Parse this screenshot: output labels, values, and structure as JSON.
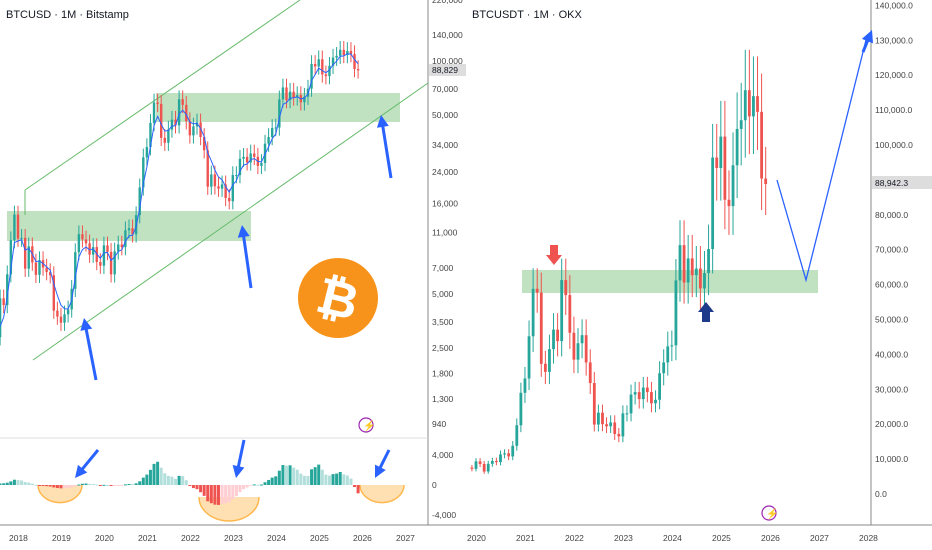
{
  "left": {
    "title": "BTCUSD · 1M · Bitstamp",
    "last_price": "88,829",
    "price_ticks": [
      "220,000",
      "140,000",
      "100,000",
      "70,000",
      "50,000",
      "34,000",
      "24,000",
      "16,000",
      "11,000",
      "7,000",
      "5,000",
      "3,500",
      "2,500",
      "1,800",
      "1,300",
      "940"
    ],
    "price_tick_values": [
      220000,
      140000,
      100000,
      70000,
      50000,
      34000,
      24000,
      16000,
      11000,
      7000,
      5000,
      3500,
      2500,
      1800,
      1300,
      940
    ],
    "osc_ticks": [
      "4,000",
      "0",
      "-4,000"
    ],
    "osc_tick_values": [
      4000,
      0,
      -4000
    ],
    "year_ticks": [
      "2018",
      "2019",
      "2020",
      "2021",
      "2022",
      "2023",
      "2024",
      "2025",
      "2026",
      "2027"
    ]
  },
  "right": {
    "title": "BTCUSDT · 1M · OKX",
    "last_price": "88,942.3",
    "price_ticks": [
      "140,000.0",
      "130,000.0",
      "120,000.0",
      "110,000.0",
      "100,000.0",
      "80,000.0",
      "70,000.0",
      "60,000.0",
      "50,000.0",
      "40,000.0",
      "30,000.0",
      "20,000.0",
      "10,000.0",
      "0.0"
    ],
    "price_tick_values": [
      140000,
      130000,
      120000,
      110000,
      100000,
      80000,
      70000,
      60000,
      50000,
      40000,
      30000,
      20000,
      10000,
      0
    ],
    "year_ticks": [
      "2020",
      "2021",
      "2022",
      "2023",
      "2024",
      "2025",
      "2026",
      "2027",
      "2028"
    ]
  },
  "colors": {
    "up": "#26a69a",
    "down": "#ef5350",
    "zone": "#a5d6a7",
    "arrow": "#2962ff",
    "btc": "#f7931a"
  },
  "chart_data": {
    "type": "candlestick",
    "start": "2017-01",
    "interval": "1M",
    "closes": [
      970,
      1190,
      1080,
      1350,
      2300,
      2480,
      2870,
      4730,
      4340,
      6450,
      10000,
      13900,
      10200,
      10300,
      6930,
      9240,
      7500,
      6400,
      7730,
      7030,
      6630,
      6370,
      4040,
      3740,
      3460,
      3850,
      4100,
      5350,
      8570,
      10800,
      10100,
      9600,
      8300,
      9150,
      7550,
      7200,
      9350,
      8600,
      6440,
      8650,
      9460,
      9140,
      11350,
      11650,
      10780,
      13800,
      19700,
      28990,
      33100,
      45200,
      58800,
      57700,
      37300,
      35000,
      41500,
      47100,
      43800,
      61300,
      57000,
      46200,
      38500,
      43200,
      45500,
      37700,
      31800,
      19900,
      23300,
      20000,
      19400,
      20500,
      17200,
      16500,
      23100,
      23100,
      28500,
      29200,
      27200,
      30500,
      29200,
      26000,
      27000,
      34600,
      37700,
      42300,
      42600,
      61200,
      71300,
      60600,
      67500,
      62700,
      64600,
      58900,
      63300,
      70200,
      96400,
      93400,
      102400,
      84300,
      82500,
      94200,
      104600,
      107100,
      115700,
      108200,
      114000,
      109500,
      90400,
      88829
    ]
  }
}
